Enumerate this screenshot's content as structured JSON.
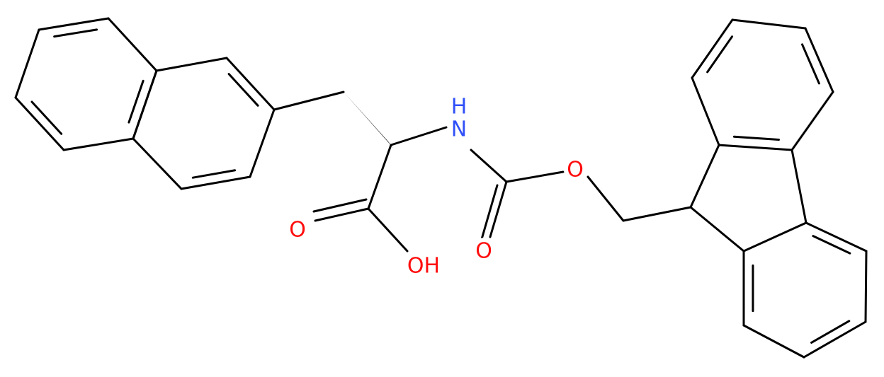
{
  "atoms": [
    {
      "label": "H"
    },
    {
      "label": "N"
    },
    {
      "label": "O"
    },
    {
      "label": "O"
    },
    {
      "label": "O"
    },
    {
      "label": "OH"
    }
  ]
}
